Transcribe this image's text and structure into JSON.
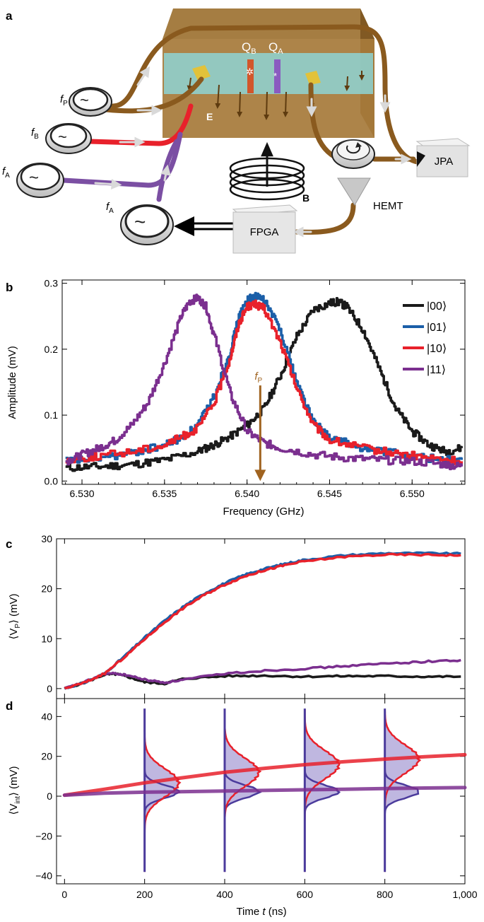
{
  "panel_labels": {
    "a": "a",
    "b": "b",
    "c": "c",
    "d": "d"
  },
  "schematic": {
    "sources": {
      "fP": {
        "base": "f",
        "sub": "P"
      },
      "fB": {
        "base": "f",
        "sub": "B"
      },
      "fA1": {
        "base": "f",
        "sub": "A"
      },
      "fA2": {
        "base": "f",
        "sub": "A"
      }
    },
    "qubits": {
      "qb": {
        "base": "Q",
        "sub": "B"
      },
      "qa": {
        "base": "Q",
        "sub": "A"
      }
    },
    "field_E": "E",
    "field_B": "B",
    "jpa": "JPA",
    "hemt": "HEMT",
    "fpga": "FPGA",
    "colors": {
      "cavity": "#a07636",
      "cavity_top": "#8a6127",
      "cavity_inner": "#8fd6d8",
      "cable": "#8a5a1e",
      "red_line": "#e8212b",
      "purple_line": "#7b4fa3"
    }
  },
  "colors": {
    "s00": "#1a1a1a",
    "s01": "#1b5fa8",
    "s10": "#e8212b",
    "s11": "#7b2f8f",
    "arrow": "#a0631f",
    "hist_fill": "#8a7cc6",
    "hist_line_red": "#e8212b",
    "hist_line_blue": "#4b3b9c"
  },
  "chart_data": [
    {
      "panel": "b",
      "type": "line",
      "xlabel": "Frequency (GHz)",
      "ylabel": "Amplitude (mV)",
      "xlim": [
        6.5288,
        6.5532
      ],
      "ylim": [
        -0.005,
        0.305
      ],
      "xticks": [
        "6.530",
        "6.535",
        "6.540",
        "6.545",
        "6.550"
      ],
      "xtick_values": [
        6.53,
        6.535,
        6.54,
        6.545,
        6.55
      ],
      "yticks": [
        "0.0",
        "0.1",
        "0.2",
        "0.3"
      ],
      "ytick_values": [
        0.0,
        0.1,
        0.2,
        0.3
      ],
      "legend_position": "top-right",
      "series": [
        {
          "name": "|00⟩",
          "color_key": "s00",
          "x": [
            6.529,
            6.531,
            6.533,
            6.535,
            6.537,
            6.538,
            6.539,
            6.54,
            6.541,
            6.542,
            6.543,
            6.544,
            6.545,
            6.5455,
            6.546,
            6.547,
            6.548,
            6.549,
            6.55,
            6.551,
            6.552,
            6.553
          ],
          "y": [
            0.02,
            0.022,
            0.025,
            0.032,
            0.045,
            0.055,
            0.068,
            0.085,
            0.11,
            0.16,
            0.22,
            0.26,
            0.27,
            0.272,
            0.265,
            0.23,
            0.17,
            0.11,
            0.075,
            0.055,
            0.045,
            0.05
          ]
        },
        {
          "name": "|01⟩",
          "color_key": "s01",
          "x": [
            6.529,
            6.531,
            6.533,
            6.535,
            6.536,
            6.537,
            6.538,
            6.539,
            6.5395,
            6.54,
            6.5405,
            6.541,
            6.542,
            6.543,
            6.544,
            6.545,
            6.547,
            6.549,
            6.551,
            6.553
          ],
          "y": [
            0.03,
            0.035,
            0.042,
            0.055,
            0.065,
            0.085,
            0.13,
            0.2,
            0.25,
            0.275,
            0.28,
            0.275,
            0.23,
            0.15,
            0.09,
            0.065,
            0.05,
            0.042,
            0.035,
            0.032
          ]
        },
        {
          "name": "|10⟩",
          "color_key": "s10",
          "x": [
            6.529,
            6.531,
            6.533,
            6.535,
            6.536,
            6.537,
            6.538,
            6.539,
            6.5395,
            6.54,
            6.5405,
            6.541,
            6.542,
            6.543,
            6.544,
            6.545,
            6.547,
            6.549,
            6.551,
            6.553
          ],
          "y": [
            0.032,
            0.038,
            0.045,
            0.055,
            0.067,
            0.08,
            0.12,
            0.19,
            0.24,
            0.265,
            0.268,
            0.262,
            0.21,
            0.14,
            0.085,
            0.062,
            0.05,
            0.042,
            0.035,
            0.03
          ]
        },
        {
          "name": "|11⟩",
          "color_key": "s11",
          "x": [
            6.529,
            6.53,
            6.531,
            6.532,
            6.533,
            6.534,
            6.535,
            6.536,
            6.5365,
            6.537,
            6.5375,
            6.538,
            6.539,
            6.54,
            6.541,
            6.542,
            6.544,
            6.546,
            6.548,
            6.55,
            6.552,
            6.553
          ],
          "y": [
            0.03,
            0.04,
            0.05,
            0.062,
            0.085,
            0.12,
            0.18,
            0.25,
            0.272,
            0.278,
            0.265,
            0.22,
            0.13,
            0.075,
            0.058,
            0.05,
            0.04,
            0.035,
            0.032,
            0.03,
            0.025,
            0.022
          ]
        }
      ],
      "annotation": {
        "label_base": "f",
        "label_sub": "P",
        "x": 6.5408,
        "y_from": 0.145,
        "y_to": 0.0
      }
    },
    {
      "panel": "c",
      "type": "line",
      "xlabel": "",
      "ylabel_base": "⟨V",
      "ylabel_sub": "P",
      "ylabel_tail": "⟩ (mV)",
      "xlim": [
        -20,
        1000
      ],
      "ylim": [
        -2,
        30
      ],
      "yticks": [
        "0",
        "10",
        "20",
        "30"
      ],
      "ytick_values": [
        0,
        10,
        20,
        30
      ],
      "series": [
        {
          "name": "",
          "color_key": "s00",
          "x": [
            0,
            50,
            100,
            130,
            160,
            200,
            250,
            300,
            400,
            500,
            600,
            700,
            800,
            900,
            990
          ],
          "y": [
            0,
            1.2,
            2.8,
            2.9,
            2.3,
            1.3,
            1.0,
            2.0,
            2.5,
            2.6,
            2.4,
            2.5,
            2.5,
            2.4,
            2.4
          ]
        },
        {
          "name": "",
          "color_key": "s11",
          "x": [
            0,
            50,
            100,
            130,
            160,
            200,
            250,
            300,
            400,
            500,
            600,
            700,
            800,
            900,
            990
          ],
          "y": [
            0,
            1.3,
            3.0,
            3.0,
            2.6,
            1.8,
            1.2,
            1.8,
            3.0,
            3.6,
            4.0,
            4.5,
            5.0,
            5.4,
            5.7
          ]
        },
        {
          "name": "",
          "color_key": "s01",
          "x": [
            0,
            50,
            100,
            150,
            200,
            250,
            300,
            350,
            400,
            450,
            500,
            550,
            600,
            700,
            800,
            900,
            990
          ],
          "y": [
            0,
            1.2,
            3.0,
            6.5,
            10.2,
            13.6,
            16.6,
            19.1,
            21.1,
            22.8,
            24.0,
            25.0,
            25.8,
            26.7,
            27.1,
            27.1,
            27.0
          ]
        },
        {
          "name": "",
          "color_key": "s10",
          "x": [
            0,
            50,
            100,
            150,
            200,
            250,
            300,
            350,
            400,
            450,
            500,
            550,
            600,
            700,
            800,
            900,
            990
          ],
          "y": [
            0,
            1.2,
            3.0,
            6.3,
            9.9,
            13.3,
            16.3,
            18.8,
            20.8,
            22.5,
            23.7,
            24.7,
            25.5,
            26.4,
            26.8,
            26.8,
            26.7
          ]
        }
      ]
    },
    {
      "panel": "d",
      "type": "line",
      "xlabel_prefix": "Time ",
      "xlabel_var": "t",
      "xlabel_suffix": " (ns)",
      "ylabel_base": "⟨V",
      "ylabel_sub": "int",
      "ylabel_tail": "⟩ (mV)",
      "xlim": [
        -20,
        1000
      ],
      "ylim": [
        -44,
        49
      ],
      "xticks": [
        "0",
        "200",
        "400",
        "600",
        "800",
        "1,000"
      ],
      "xtick_values": [
        0,
        200,
        400,
        600,
        800,
        1000
      ],
      "yticks": [
        "−40",
        "−20",
        "0",
        "20",
        "40"
      ],
      "ytick_values": [
        -40,
        -20,
        0,
        20,
        40
      ],
      "series": [
        {
          "name": "",
          "color_key": "s10",
          "x": [
            0,
            100,
            200,
            300,
            400,
            500,
            600,
            700,
            800,
            900,
            1000
          ],
          "y": [
            0.5,
            3.5,
            6.7,
            9.4,
            12.0,
            14.0,
            15.8,
            17.3,
            18.6,
            19.8,
            20.8
          ]
        },
        {
          "name": "",
          "color_key": "s11",
          "x": [
            0,
            100,
            200,
            300,
            400,
            500,
            600,
            700,
            800,
            900,
            1000
          ],
          "y": [
            0.5,
            1.5,
            2.0,
            2.3,
            2.6,
            2.9,
            3.2,
            3.5,
            3.8,
            4.1,
            4.3
          ]
        }
      ],
      "histograms": {
        "times": [
          200,
          400,
          600,
          800
        ],
        "amplitude_ns": 85,
        "red_centers": [
          6.7,
          12.0,
          15.8,
          18.6
        ],
        "red_width": 7,
        "blue_center": 2.3,
        "blue_width": 3.2,
        "y_from": -38,
        "y_to": 44
      }
    }
  ]
}
